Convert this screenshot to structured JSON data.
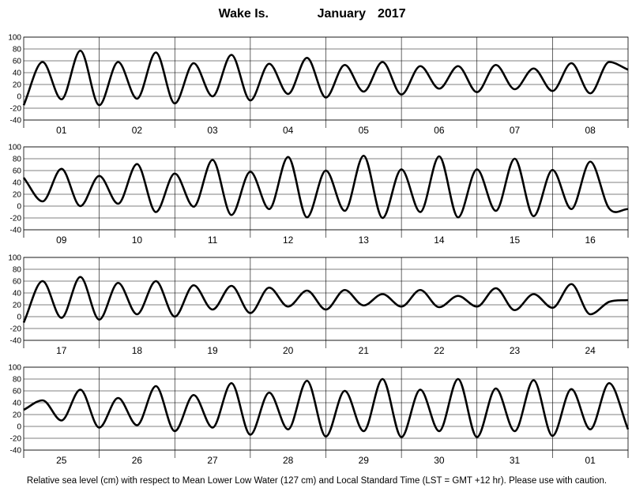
{
  "title": {
    "station": "Wake Is.",
    "month": "January",
    "year": "2017"
  },
  "footnote": "Relative sea level (cm) with respect to Mean Lower Low Water (127 cm) and Local Standard Time (LST = GMT +12 hr). Please use with caution.",
  "chart_data": [
    {
      "type": "line",
      "ylim": [
        -40,
        100
      ],
      "yticks": [
        -40,
        -20,
        0,
        20,
        40,
        60,
        80,
        100
      ],
      "grid": true,
      "days": [
        "01",
        "02",
        "03",
        "04",
        "05",
        "06",
        "07",
        "08"
      ],
      "series": [
        {
          "x_hours": [
            0,
            6,
            12,
            18,
            24,
            30,
            36,
            42,
            48,
            54,
            60,
            66,
            72,
            78,
            84,
            90,
            96,
            102,
            108,
            114,
            120,
            126,
            132,
            138,
            144,
            150,
            156,
            162,
            168,
            174,
            180,
            186,
            192
          ],
          "values": [
            -15,
            58,
            -5,
            77,
            -15,
            58,
            -4,
            74,
            -12,
            56,
            0,
            70,
            -7,
            55,
            4,
            65,
            -2,
            53,
            8,
            58,
            3,
            51,
            13,
            51,
            7,
            53,
            12,
            47,
            9,
            56,
            5,
            58,
            45
          ]
        }
      ]
    },
    {
      "type": "line",
      "ylim": [
        -40,
        100
      ],
      "yticks": [
        -40,
        -20,
        0,
        20,
        40,
        60,
        80,
        100
      ],
      "grid": true,
      "days": [
        "09",
        "10",
        "11",
        "12",
        "13",
        "14",
        "15",
        "16"
      ],
      "series": [
        {
          "x_hours": [
            0,
            6,
            12,
            18,
            24,
            30,
            36,
            42,
            48,
            54,
            60,
            66,
            72,
            78,
            84,
            90,
            96,
            102,
            108,
            114,
            120,
            126,
            132,
            138,
            144,
            150,
            156,
            162,
            168,
            174,
            180,
            186,
            192
          ],
          "values": [
            48,
            8,
            63,
            0,
            51,
            4,
            71,
            -10,
            55,
            -1,
            78,
            -15,
            58,
            -5,
            83,
            -19,
            60,
            -8,
            85,
            -20,
            62,
            -10,
            84,
            -19,
            62,
            -8,
            80,
            -17,
            61,
            -5,
            75,
            -4,
            -5
          ]
        }
      ]
    },
    {
      "type": "line",
      "ylim": [
        -40,
        100
      ],
      "yticks": [
        -40,
        -20,
        0,
        20,
        40,
        60,
        80,
        100
      ],
      "grid": true,
      "days": [
        "17",
        "18",
        "19",
        "20",
        "21",
        "22",
        "23",
        "24"
      ],
      "series": [
        {
          "x_hours": [
            0,
            6,
            12,
            18,
            24,
            30,
            36,
            42,
            48,
            54,
            60,
            66,
            72,
            78,
            84,
            90,
            96,
            102,
            108,
            114,
            120,
            126,
            132,
            138,
            144,
            150,
            156,
            162,
            168,
            174,
            180,
            186,
            192
          ],
          "values": [
            -10,
            60,
            -2,
            67,
            -5,
            57,
            4,
            60,
            0,
            53,
            12,
            52,
            6,
            49,
            17,
            44,
            12,
            45,
            19,
            38,
            17,
            45,
            16,
            35,
            17,
            48,
            11,
            38,
            15,
            55,
            4,
            25,
            28
          ]
        }
      ]
    },
    {
      "type": "line",
      "ylim": [
        -40,
        100
      ],
      "yticks": [
        -40,
        -20,
        0,
        20,
        40,
        60,
        80,
        100
      ],
      "grid": true,
      "days": [
        "25",
        "26",
        "27",
        "28",
        "29",
        "30",
        "31",
        "01"
      ],
      "series": [
        {
          "x_hours": [
            0,
            6,
            12,
            18,
            24,
            30,
            36,
            42,
            48,
            54,
            60,
            66,
            72,
            78,
            84,
            90,
            96,
            102,
            108,
            114,
            120,
            126,
            132,
            138,
            144,
            150,
            156,
            162,
            168,
            174,
            180,
            186,
            192
          ],
          "values": [
            28,
            44,
            10,
            62,
            -2,
            48,
            2,
            68,
            -8,
            53,
            -2,
            73,
            -14,
            57,
            -5,
            77,
            -17,
            60,
            -8,
            80,
            -18,
            62,
            -8,
            80,
            -18,
            64,
            -8,
            78,
            -16,
            63,
            -5,
            73,
            -5
          ]
        }
      ]
    }
  ]
}
